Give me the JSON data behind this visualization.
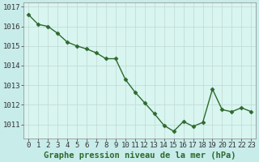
{
  "x": [
    0,
    1,
    2,
    3,
    4,
    5,
    6,
    7,
    8,
    9,
    10,
    11,
    12,
    13,
    14,
    15,
    16,
    17,
    18,
    19,
    20,
    21,
    22,
    23
  ],
  "y": [
    1016.6,
    1016.1,
    1016.0,
    1015.65,
    1015.2,
    1015.0,
    1014.85,
    1014.65,
    1014.35,
    1014.35,
    1013.3,
    1012.65,
    1012.1,
    1011.55,
    1010.95,
    1010.65,
    1011.15,
    1010.9,
    1011.1,
    1012.8,
    1011.75,
    1011.65,
    1011.85,
    1011.65
  ],
  "line_color": "#2d6a2d",
  "marker": "D",
  "markersize": 2.5,
  "bg_color": "#c8ecea",
  "plot_bg_color": "#d8f5f0",
  "grid_color": "#c0d8d4",
  "xlabel": "Graphe pression niveau de la mer (hPa)",
  "xlabel_fontsize": 7.5,
  "tick_fontsize": 6.5,
  "ylim": [
    1010.3,
    1017.2
  ],
  "yticks": [
    1011,
    1012,
    1013,
    1014,
    1015,
    1016,
    1017
  ],
  "xticks": [
    0,
    1,
    2,
    3,
    4,
    5,
    6,
    7,
    8,
    9,
    10,
    11,
    12,
    13,
    14,
    15,
    16,
    17,
    18,
    19,
    20,
    21,
    22,
    23
  ],
  "linewidth": 1.0
}
